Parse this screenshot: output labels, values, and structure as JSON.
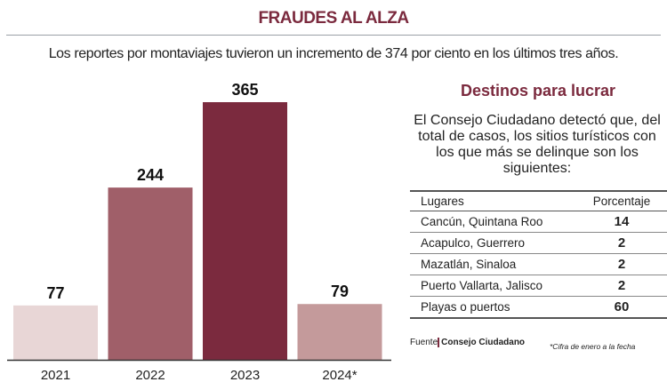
{
  "title": "FRAUDES AL ALZA",
  "subtitle": "Los reportes por montaviajes tuvieron un incremento de 374 por ciento en los últimos tres años.",
  "chart_data": {
    "type": "bar",
    "categories": [
      "2021",
      "2022",
      "2023",
      "2024*"
    ],
    "values": [
      77,
      244,
      365,
      79
    ],
    "colors": [
      "#e8d6d6",
      "#a05f69",
      "#7b2a3e",
      "#c49a9b"
    ],
    "ylim": [
      0,
      400
    ],
    "grid": false
  },
  "side": {
    "title": "Destinos para lucrar",
    "text": "El Consejo Ciudadano detectó que, del total de casos, los sitios turísticos con los que más se delinque son los siguientes:",
    "headers": [
      "Lugares",
      "Porcentaje"
    ],
    "rows": [
      [
        "Cancún, Quintana Roo",
        "14"
      ],
      [
        "Acapulco, Guerrero",
        "2"
      ],
      [
        "Mazatlán, Sinaloa",
        "2"
      ],
      [
        "Puerto Vallarta, Jalisco",
        "2"
      ],
      [
        "Playas o puertos",
        "60"
      ]
    ]
  },
  "source_label": "Fuente",
  "source": "Consejo Ciudadano",
  "note": "*Cifra de enero a la fecha"
}
